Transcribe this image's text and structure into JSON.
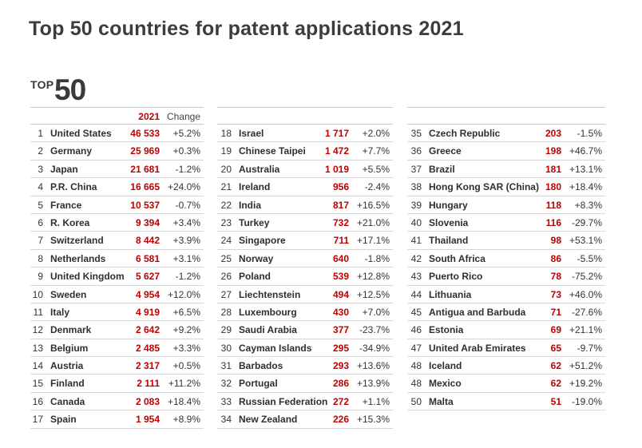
{
  "title": "Top 50 countries for patent applications 2021",
  "logo": {
    "top": "TOP",
    "number": "50"
  },
  "header": {
    "year": "2021",
    "change": "Change"
  },
  "colors": {
    "accent": "#c00000",
    "title": "#3c3c3c"
  },
  "columns": [
    [
      {
        "rank": "1",
        "country": "United States",
        "value": "46 533",
        "change": "+5.2%"
      },
      {
        "rank": "2",
        "country": "Germany",
        "value": "25 969",
        "change": "+0.3%"
      },
      {
        "rank": "3",
        "country": "Japan",
        "value": "21 681",
        "change": "-1.2%"
      },
      {
        "rank": "4",
        "country": "P.R. China",
        "value": "16 665",
        "change": "+24.0%"
      },
      {
        "rank": "5",
        "country": "France",
        "value": "10 537",
        "change": "-0.7%"
      },
      {
        "rank": "6",
        "country": "R. Korea",
        "value": "9 394",
        "change": "+3.4%"
      },
      {
        "rank": "7",
        "country": "Switzerland",
        "value": "8 442",
        "change": "+3.9%"
      },
      {
        "rank": "8",
        "country": "Netherlands",
        "value": "6 581",
        "change": "+3.1%"
      },
      {
        "rank": "9",
        "country": "United Kingdom",
        "value": "5 627",
        "change": "-1.2%"
      },
      {
        "rank": "10",
        "country": "Sweden",
        "value": "4 954",
        "change": "+12.0%"
      },
      {
        "rank": "11",
        "country": "Italy",
        "value": "4 919",
        "change": "+6.5%"
      },
      {
        "rank": "12",
        "country": "Denmark",
        "value": "2 642",
        "change": "+9.2%"
      },
      {
        "rank": "13",
        "country": "Belgium",
        "value": "2 485",
        "change": "+3.3%"
      },
      {
        "rank": "14",
        "country": "Austria",
        "value": "2 317",
        "change": "+0.5%"
      },
      {
        "rank": "15",
        "country": "Finland",
        "value": "2 111",
        "change": "+11.2%"
      },
      {
        "rank": "16",
        "country": "Canada",
        "value": "2 083",
        "change": "+18.4%"
      },
      {
        "rank": "17",
        "country": "Spain",
        "value": "1 954",
        "change": "+8.9%"
      }
    ],
    [
      {
        "rank": "18",
        "country": "Israel",
        "value": "1 717",
        "change": "+2.0%"
      },
      {
        "rank": "19",
        "country": "Chinese Taipei",
        "value": "1 472",
        "change": "+7.7%"
      },
      {
        "rank": "20",
        "country": "Australia",
        "value": "1 019",
        "change": "+5.5%"
      },
      {
        "rank": "21",
        "country": "Ireland",
        "value": "956",
        "change": "-2.4%"
      },
      {
        "rank": "22",
        "country": "India",
        "value": "817",
        "change": "+16.5%"
      },
      {
        "rank": "23",
        "country": "Turkey",
        "value": "732",
        "change": "+21.0%"
      },
      {
        "rank": "24",
        "country": "Singapore",
        "value": "711",
        "change": "+17.1%"
      },
      {
        "rank": "25",
        "country": "Norway",
        "value": "640",
        "change": "-1.8%"
      },
      {
        "rank": "26",
        "country": "Poland",
        "value": "539",
        "change": "+12.8%"
      },
      {
        "rank": "27",
        "country": "Liechtenstein",
        "value": "494",
        "change": "+12.5%"
      },
      {
        "rank": "28",
        "country": "Luxembourg",
        "value": "430",
        "change": "+7.0%"
      },
      {
        "rank": "29",
        "country": "Saudi Arabia",
        "value": "377",
        "change": "-23.7%"
      },
      {
        "rank": "30",
        "country": "Cayman Islands",
        "value": "295",
        "change": "-34.9%"
      },
      {
        "rank": "31",
        "country": "Barbados",
        "value": "293",
        "change": "+13.6%"
      },
      {
        "rank": "32",
        "country": "Portugal",
        "value": "286",
        "change": "+13.9%"
      },
      {
        "rank": "33",
        "country": "Russian Federation",
        "value": "272",
        "change": "+1.1%"
      },
      {
        "rank": "34",
        "country": "New Zealand",
        "value": "226",
        "change": "+15.3%"
      }
    ],
    [
      {
        "rank": "35",
        "country": "Czech Republic",
        "value": "203",
        "change": "-1.5%"
      },
      {
        "rank": "36",
        "country": "Greece",
        "value": "198",
        "change": "+46.7%"
      },
      {
        "rank": "37",
        "country": "Brazil",
        "value": "181",
        "change": "+13.1%"
      },
      {
        "rank": "38",
        "country": "Hong Kong SAR (China)",
        "value": "180",
        "change": "+18.4%"
      },
      {
        "rank": "39",
        "country": "Hungary",
        "value": "118",
        "change": "+8.3%"
      },
      {
        "rank": "40",
        "country": "Slovenia",
        "value": "116",
        "change": "-29.7%"
      },
      {
        "rank": "41",
        "country": "Thailand",
        "value": "98",
        "change": "+53.1%"
      },
      {
        "rank": "42",
        "country": "South Africa",
        "value": "86",
        "change": "-5.5%"
      },
      {
        "rank": "43",
        "country": "Puerto Rico",
        "value": "78",
        "change": "-75.2%"
      },
      {
        "rank": "44",
        "country": "Lithuania",
        "value": "73",
        "change": "+46.0%"
      },
      {
        "rank": "45",
        "country": "Antigua and Barbuda",
        "value": "71",
        "change": "-27.6%"
      },
      {
        "rank": "46",
        "country": "Estonia",
        "value": "69",
        "change": "+21.1%"
      },
      {
        "rank": "47",
        "country": "United Arab Emirates",
        "value": "65",
        "change": "-9.7%"
      },
      {
        "rank": "48",
        "country": "Iceland",
        "value": "62",
        "change": "+51.2%"
      },
      {
        "rank": "48",
        "country": "Mexico",
        "value": "62",
        "change": "+19.2%"
      },
      {
        "rank": "50",
        "country": "Malta",
        "value": "51",
        "change": "-19.0%"
      }
    ]
  ]
}
